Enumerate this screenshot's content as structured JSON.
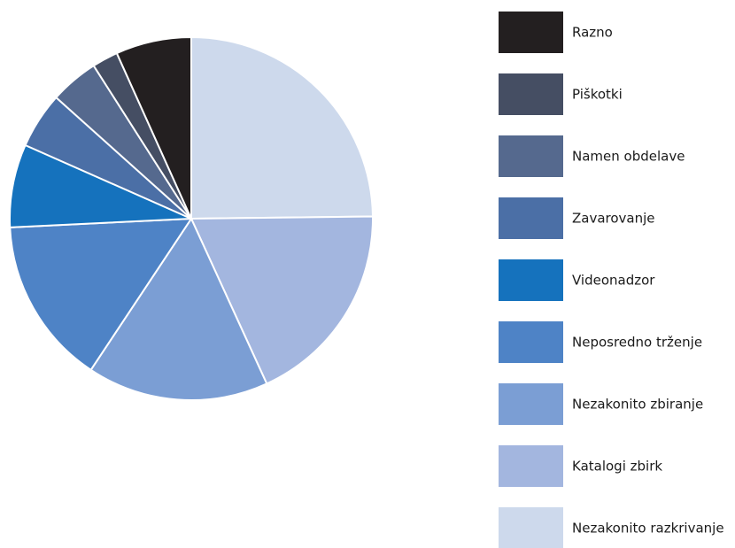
{
  "chart_data": {
    "type": "pie",
    "start_angle_deg": 0,
    "direction": "clockwise",
    "legend_position": "right",
    "slices": [
      {
        "label": "Nezakonito razkrivanje",
        "value": 25.8,
        "color": "#cdd9ec"
      },
      {
        "label": "Katalogi zbirk",
        "value": 19.1,
        "color": "#a3b6df"
      },
      {
        "label": "Nezakonito zbiranje",
        "value": 16.8,
        "color": "#7b9ed4"
      },
      {
        "label": "Neposredno trženje",
        "value": 15.5,
        "color": "#4e83c6"
      },
      {
        "label": "Videonadzor",
        "value": 7.7,
        "color": "#1572bd"
      },
      {
        "label": "Zavarovanje",
        "value": 5.2,
        "color": "#4b6fa6"
      },
      {
        "label": "Namen obdelave",
        "value": 4.5,
        "color": "#55698e"
      },
      {
        "label": "Piškotki",
        "value": 2.4,
        "color": "#454e63"
      },
      {
        "label": "Razno",
        "value": 7.0,
        "color": "#231f20"
      }
    ],
    "legend_order": [
      "Razno",
      "Piškotki",
      "Namen obdelave",
      "Zavarovanje",
      "Videonadzor",
      "Neposredno trženje",
      "Nezakonito zbiranje",
      "Katalogi zbirk",
      "Nezakonito razkrivanje"
    ]
  }
}
